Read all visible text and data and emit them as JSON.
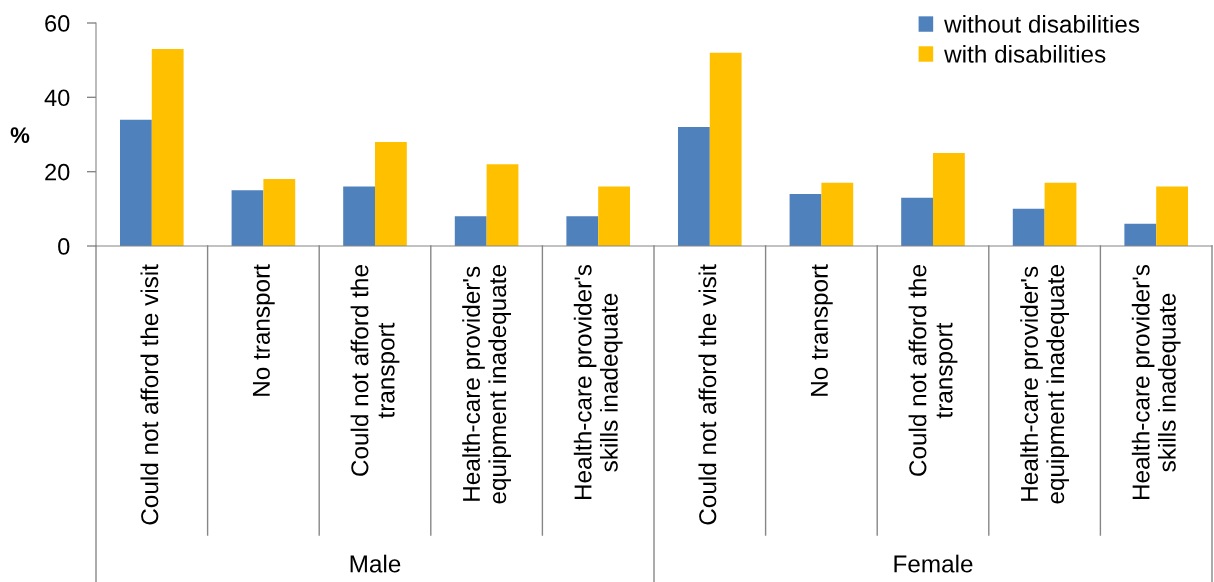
{
  "chart_data": {
    "type": "bar",
    "ylabel": "%",
    "categories": [
      "Could not afford the visit",
      "No transport",
      "Could not afford the transport",
      "Health-care provider's equipment inadequate",
      "Health-care provider's skills inadequate",
      "Could not afford the visit",
      "No transport",
      "Could not afford the transport",
      "Health-care provider's equipment inadequate",
      "Health-care provider's skills inadequate"
    ],
    "series": [
      {
        "name": "without disabilities",
        "color": "#4f81bd",
        "values": [
          34,
          15,
          16,
          8,
          8,
          32,
          14,
          13,
          10,
          6
        ]
      },
      {
        "name": "with disabilities",
        "color": "#ffc000",
        "values": [
          53,
          18,
          28,
          22,
          16,
          52,
          17,
          25,
          17,
          16
        ]
      }
    ],
    "ylim": [
      0,
      60
    ],
    "yticks": [
      0,
      20,
      40,
      60
    ],
    "grid": false,
    "legend": "top right",
    "annotations": [
      "Male",
      "Female"
    ]
  }
}
